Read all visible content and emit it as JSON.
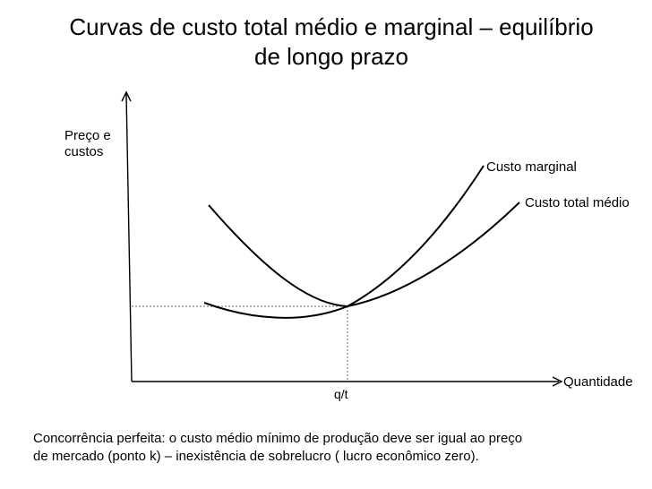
{
  "title": {
    "line1": "Curvas de custo total médio e marginal – equilíbrio",
    "line2": "de longo prazo"
  },
  "chart_data": {
    "type": "line",
    "title": "Curvas de custo total médio e marginal – equilíbrio de longo prazo",
    "ylabel_lines": [
      "Preço e",
      "custos"
    ],
    "xlabel": "Quantidade",
    "x_tick_labels": [
      "q/t"
    ],
    "series": [
      {
        "name": "Custo marginal",
        "color": "#000000"
      },
      {
        "name": "Custo total médio",
        "color": "#000000"
      }
    ],
    "grid": false,
    "legend": "inline labels at curve ends",
    "guide_lines": "dotted horizontal and vertical lines through the intersection at q/t"
  },
  "caption": {
    "line1": "Concorrência perfeita: o custo médio mínimo de produção deve ser igual ao preço",
    "line2": "de mercado (ponto k) – inexistência de sobrelucro ( lucro econômico zero)."
  }
}
